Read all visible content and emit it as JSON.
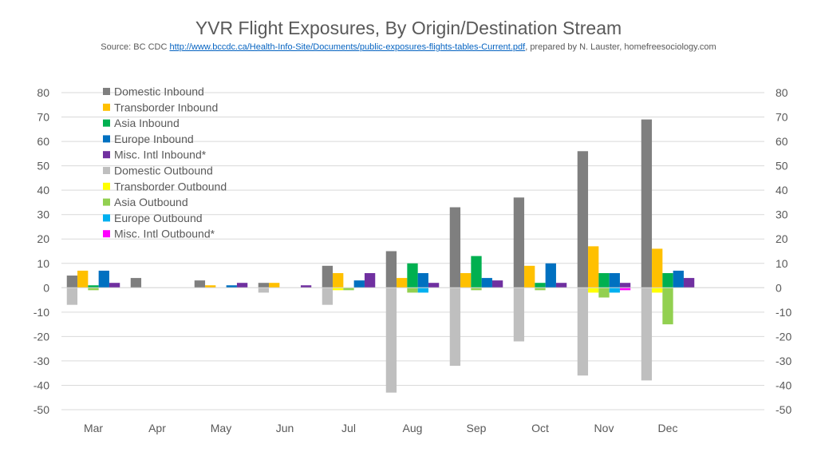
{
  "chart_data": {
    "type": "bar",
    "title": "YVR Flight Exposures, By Origin/Destination Stream",
    "subtitle_prefix": "Source: BC CDC",
    "subtitle_link": "http://www.bccdc.ca/Health-Info-Site/Documents/public-exposures-flights-tables-Current.pdf",
    "subtitle_suffix": ", prepared by N. Lauster, homefreesociology.com",
    "xlabel": "",
    "ylabel": "",
    "ylim": [
      -50,
      80
    ],
    "yticks": [
      80,
      70,
      60,
      50,
      40,
      30,
      20,
      10,
      0,
      -10,
      -20,
      -30,
      -40,
      -50
    ],
    "grid": true,
    "legend_position": "top-left",
    "categories": [
      "Mar",
      "Apr",
      "May",
      "Jun",
      "Jul",
      "Aug",
      "Sep",
      "Oct",
      "Nov",
      "Dec"
    ],
    "series": [
      {
        "name": "Domestic Inbound",
        "color": "#7f7f7f",
        "group": "inbound",
        "values": [
          5,
          4,
          3,
          2,
          9,
          15,
          33,
          37,
          56,
          69
        ]
      },
      {
        "name": "Transborder Inbound",
        "color": "#ffc000",
        "group": "inbound",
        "values": [
          7,
          0,
          1,
          2,
          6,
          4,
          6,
          9,
          17,
          16
        ]
      },
      {
        "name": "Asia Inbound",
        "color": "#00b050",
        "group": "inbound",
        "values": [
          1,
          0,
          0,
          0,
          0,
          10,
          13,
          2,
          6,
          6
        ]
      },
      {
        "name": "Europe Inbound",
        "color": "#0070c0",
        "group": "inbound",
        "values": [
          7,
          0,
          1,
          0,
          3,
          6,
          4,
          10,
          6,
          7
        ]
      },
      {
        "name": "Misc. Intl Inbound*",
        "color": "#7030a0",
        "group": "inbound",
        "values": [
          2,
          0,
          2,
          1,
          6,
          2,
          3,
          2,
          2,
          4
        ]
      },
      {
        "name": "Domestic Outbound",
        "color": "#bfbfbf",
        "group": "outbound",
        "values": [
          -7,
          0,
          0,
          -2,
          -7,
          -43,
          -32,
          -22,
          -36,
          -38
        ]
      },
      {
        "name": "Transborder Outbound",
        "color": "#ffff00",
        "group": "outbound",
        "values": [
          0,
          0,
          0,
          0,
          -1,
          0,
          0,
          0,
          -2,
          -2
        ]
      },
      {
        "name": "Asia Outbound",
        "color": "#92d050",
        "group": "outbound",
        "values": [
          -1,
          0,
          0,
          0,
          -1,
          -2,
          -1,
          -1,
          -4,
          -15
        ]
      },
      {
        "name": "Europe Outbound",
        "color": "#00b0f0",
        "group": "outbound",
        "values": [
          0,
          0,
          0,
          0,
          0,
          -2,
          0,
          0,
          -2,
          0
        ]
      },
      {
        "name": "Misc. Intl Outbound*",
        "color": "#ff00ff",
        "group": "outbound",
        "values": [
          0,
          0,
          0,
          0,
          0,
          0,
          0,
          0,
          -1,
          0
        ]
      }
    ]
  }
}
